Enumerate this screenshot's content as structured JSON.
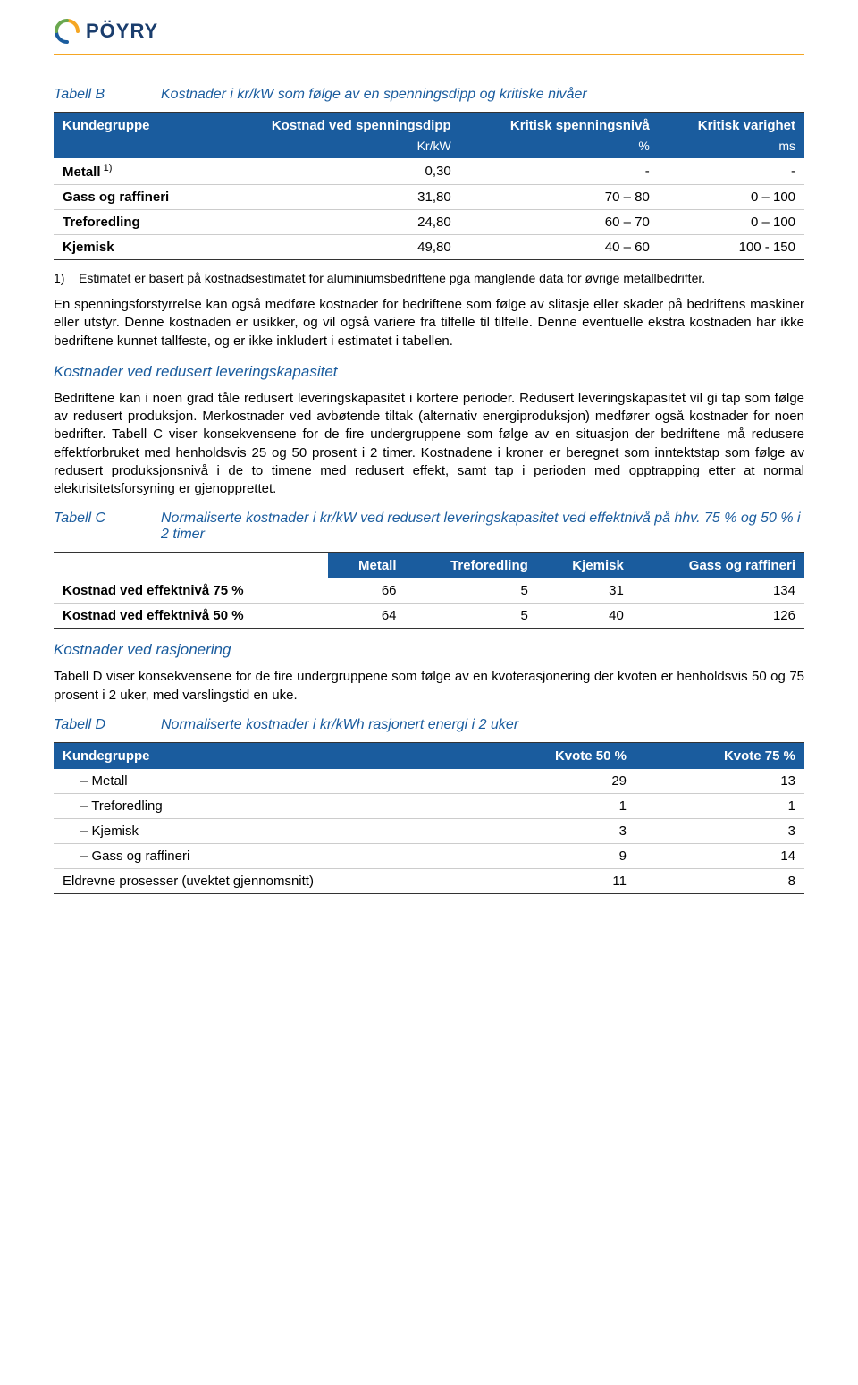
{
  "header": {
    "brand": "PÖYRY"
  },
  "tableB": {
    "label": "Tabell B",
    "caption": "Kostnader i kr/kW som følge av en spenningsdipp og kritiske nivåer",
    "columns": [
      "Kundegruppe",
      "Kostnad ved spenningsdipp",
      "Kritisk spenningsnivå",
      "Kritisk varighet"
    ],
    "units": [
      "",
      "Kr/kW",
      "%",
      "ms"
    ],
    "rows": [
      {
        "group": "Metall",
        "sup": "1)",
        "cost": "0,30",
        "level": "-",
        "duration": "-"
      },
      {
        "group": "Gass og raffineri",
        "sup": "",
        "cost": "31,80",
        "level": "70 – 80",
        "duration": "0 – 100"
      },
      {
        "group": "Treforedling",
        "sup": "",
        "cost": "24,80",
        "level": "60 – 70",
        "duration": "0 – 100"
      },
      {
        "group": "Kjemisk",
        "sup": "",
        "cost": "49,80",
        "level": "40 – 60",
        "duration": "100 - 150"
      }
    ],
    "footnote_num": "1)",
    "footnote": "Estimatet er basert på kostnadsestimatet for aluminiumsbedriftene pga manglende data for øvrige metallbedrifter."
  },
  "paragraphs": {
    "p1": "En spenningsforstyrrelse kan også medføre kostnader for bedriftene som følge av slitasje eller skader på bedriftens maskiner eller utstyr. Denne kostnaden er usikker, og vil også variere fra tilfelle til tilfelle. Denne eventuelle ekstra kostnaden har ikke bedriftene kunnet tallfeste, og er ikke inkludert i estimatet i tabellen.",
    "h1": "Kostnader ved redusert leveringskapasitet",
    "p2": "Bedriftene kan i noen grad tåle redusert leveringskapasitet i kortere perioder. Redusert leveringskapasitet vil gi tap som følge av redusert produksjon. Merkostnader ved avbøtende tiltak (alternativ energiproduksjon) medfører også kostnader for noen bedrifter. Tabell C viser konsekvensene for de fire undergruppene som følge av en situasjon der bedriftene må redusere effektforbruket med henholdsvis 25 og 50 prosent i 2 timer. Kostnadene i kroner er beregnet som inntektstap som følge av redusert produksjonsnivå i de to timene med redusert effekt, samt tap i perioden med opptrapping etter at normal elektrisitetsforsyning er gjenopprettet.",
    "h2": "Kostnader ved rasjonering",
    "p3": "Tabell D viser konsekvensene for de fire undergruppene som følge av en kvoterasjonering der kvoten er henholdsvis 50 og 75 prosent i 2 uker, med varslingstid en uke."
  },
  "tableC": {
    "label": "Tabell C",
    "caption": "Normaliserte kostnader i kr/kW ved redusert leveringskapasitet ved effektnivå på hhv. 75 % og 50 % i 2 timer",
    "columns": [
      "",
      "Metall",
      "Treforedling",
      "Kjemisk",
      "Gass og raffineri"
    ],
    "rows": [
      {
        "label": "Kostnad ved effektnivå 75 %",
        "v1": "66",
        "v2": "5",
        "v3": "31",
        "v4": "134"
      },
      {
        "label": "Kostnad ved effektnivå 50 %",
        "v1": "64",
        "v2": "5",
        "v3": "40",
        "v4": "126"
      }
    ]
  },
  "tableD": {
    "label": "Tabell D",
    "caption": "Normaliserte kostnader i kr/kWh rasjonert energi i 2 uker",
    "columns": [
      "Kundegruppe",
      "Kvote 50 %",
      "Kvote 75 %"
    ],
    "rows": [
      {
        "label": "– Metall",
        "v1": "29",
        "v2": "13",
        "indent": true
      },
      {
        "label": "– Treforedling",
        "v1": "1",
        "v2": "1",
        "indent": true
      },
      {
        "label": "– Kjemisk",
        "v1": "3",
        "v2": "3",
        "indent": true
      },
      {
        "label": "– Gass og raffineri",
        "v1": "9",
        "v2": "14",
        "indent": true
      },
      {
        "label": "Eldrevne prosesser (uvektet gjennomsnitt)",
        "v1": "11",
        "v2": "8",
        "indent": false
      }
    ]
  },
  "colors": {
    "table_header_bg": "#1a5c9e",
    "accent_text": "#1a5c9e",
    "hr_color": "#f5a623",
    "body_text": "#000000"
  }
}
